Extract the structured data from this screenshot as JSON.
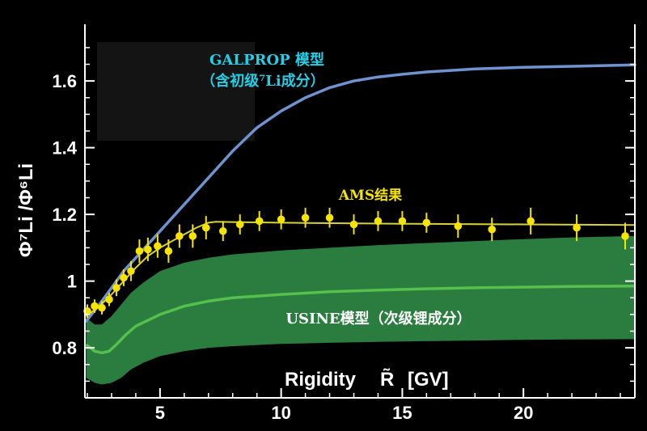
{
  "chart_data": {
    "type": "line",
    "xlabel": "Rigidity",
    "xlabel_symbol": "R̃",
    "xlabel_unit": "[GV]",
    "ylabel": "Φ⁷Li /Φ⁶Li",
    "xlim": [
      1.9,
      24.6
    ],
    "ylim": [
      0.65,
      1.77
    ],
    "xticks": [
      5,
      10,
      15,
      20
    ],
    "yticks": [
      0.8,
      1,
      1.2,
      1.4,
      1.6
    ],
    "ytick_labels": [
      "0.8",
      "1",
      "1.2",
      "1.4",
      "1.6"
    ],
    "grid": false,
    "annotations": {
      "galprop_line1": "GALPROP 模型",
      "galprop_line2": "（含初级⁷Li成分）",
      "ams": "AMS结果",
      "usine": "USINE模型（次级锂成分）"
    },
    "colors": {
      "galprop": "#6f93cf",
      "ams": "#f5e400",
      "ams_fit": "#d9d23a",
      "usine_band": "#2a7d3f",
      "usine_line": "#55c04c",
      "annotation_galprop": "#22cfe6",
      "annotation_ams": "#f5e400",
      "annotation_usine": "#ffffff",
      "box": "#141414"
    },
    "series": [
      {
        "name": "GALPROP 模型",
        "kind": "line",
        "x": [
          1.95,
          2.5,
          3.0,
          3.5,
          4.0,
          5.0,
          6.0,
          7.0,
          8.0,
          9.0,
          10.0,
          11.0,
          12.0,
          13.0,
          14.0,
          15.0,
          16.0,
          18.0,
          20.0,
          22.0,
          24.6
        ],
        "y": [
          0.88,
          0.93,
          0.98,
          1.03,
          1.07,
          1.15,
          1.23,
          1.31,
          1.39,
          1.46,
          1.51,
          1.55,
          1.58,
          1.6,
          1.612,
          1.62,
          1.627,
          1.636,
          1.641,
          1.644,
          1.648
        ]
      },
      {
        "name": "AMS结果",
        "kind": "points",
        "x": [
          2.0,
          2.3,
          2.6,
          2.9,
          3.2,
          3.5,
          3.8,
          4.15,
          4.5,
          4.9,
          5.35,
          5.8,
          6.35,
          6.9,
          7.6,
          8.3,
          9.1,
          10.0,
          11.0,
          12.0,
          13.0,
          14.0,
          15.0,
          16.0,
          17.3,
          18.7,
          20.3,
          22.2,
          24.2
        ],
        "y": [
          0.91,
          0.925,
          0.92,
          0.945,
          0.98,
          1.01,
          1.03,
          1.09,
          1.095,
          1.105,
          1.09,
          1.135,
          1.135,
          1.16,
          1.15,
          1.17,
          1.18,
          1.185,
          1.19,
          1.19,
          1.17,
          1.18,
          1.18,
          1.175,
          1.165,
          1.155,
          1.18,
          1.16,
          1.135
        ],
        "error": [
          0.02,
          0.02,
          0.02,
          0.02,
          0.025,
          0.025,
          0.03,
          0.035,
          0.035,
          0.035,
          0.035,
          0.035,
          0.035,
          0.035,
          0.03,
          0.03,
          0.03,
          0.03,
          0.03,
          0.03,
          0.03,
          0.03,
          0.03,
          0.03,
          0.035,
          0.035,
          0.04,
          0.04,
          0.04
        ]
      },
      {
        "name": "AMS fit",
        "kind": "line",
        "x": [
          1.95,
          2.5,
          3.0,
          3.5,
          4.0,
          4.5,
          5.0,
          5.5,
          6.0,
          6.5,
          7.0,
          7.3,
          8.0,
          10.0,
          15.0,
          20.0,
          24.6
        ],
        "y": [
          0.895,
          0.925,
          0.96,
          1.0,
          1.04,
          1.075,
          1.1,
          1.12,
          1.14,
          1.16,
          1.175,
          1.178,
          1.177,
          1.175,
          1.172,
          1.17,
          1.168
        ]
      },
      {
        "name": "USINE模型（次级锂成分）",
        "kind": "line",
        "x": [
          1.95,
          2.3,
          2.6,
          2.9,
          3.2,
          3.6,
          4.0,
          5.0,
          6.0,
          7.0,
          8.0,
          9.0,
          10.0,
          12.0,
          14.0,
          16.0,
          18.0,
          20.0,
          22.0,
          24.6
        ],
        "y": [
          0.81,
          0.79,
          0.785,
          0.79,
          0.81,
          0.84,
          0.865,
          0.9,
          0.925,
          0.94,
          0.95,
          0.955,
          0.96,
          0.968,
          0.973,
          0.977,
          0.98,
          0.982,
          0.984,
          0.985
        ]
      },
      {
        "name": "USINE band upper",
        "kind": "band",
        "x": [
          1.95,
          2.3,
          2.6,
          3.0,
          3.4,
          3.8,
          4.3,
          5.0,
          6.0,
          7.0,
          8.0,
          10.0,
          12.0,
          14.0,
          16.0,
          18.0,
          20.0,
          22.0,
          24.6
        ],
        "upper": [
          0.89,
          0.87,
          0.87,
          0.895,
          0.93,
          0.965,
          0.995,
          1.03,
          1.055,
          1.07,
          1.08,
          1.092,
          1.1,
          1.108,
          1.114,
          1.12,
          1.126,
          1.131,
          1.135
        ],
        "lower": [
          0.71,
          0.695,
          0.69,
          0.695,
          0.71,
          0.735,
          0.755,
          0.775,
          0.79,
          0.8,
          0.805,
          0.812,
          0.815,
          0.818,
          0.82,
          0.822,
          0.824,
          0.825,
          0.826
        ]
      }
    ]
  }
}
